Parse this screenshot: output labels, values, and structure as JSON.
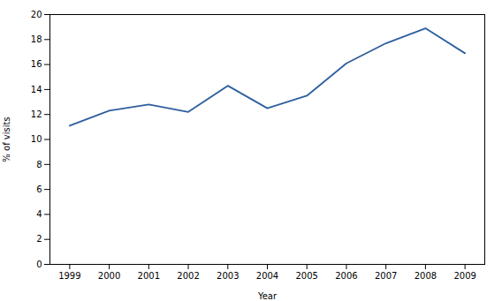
{
  "chart_data": {
    "type": "line",
    "x": [
      1999,
      2000,
      2001,
      2002,
      2003,
      2004,
      2005,
      2006,
      2007,
      2008,
      2009
    ],
    "values": [
      11.1,
      12.3,
      12.8,
      12.2,
      14.3,
      12.5,
      13.5,
      16.1,
      17.7,
      18.9,
      16.9
    ],
    "color": "#2E5F9E",
    "xlabel": "Year",
    "ylabel": "% of visits",
    "xlim": [
      1998.5,
      2009.5
    ],
    "xticks": [
      1999,
      2000,
      2001,
      2002,
      2003,
      2004,
      2005,
      2006,
      2007,
      2008,
      2009
    ],
    "ylim": [
      0,
      20
    ],
    "yticks": [
      0,
      2,
      4,
      6,
      8,
      10,
      12,
      14,
      16,
      18,
      20
    ]
  }
}
